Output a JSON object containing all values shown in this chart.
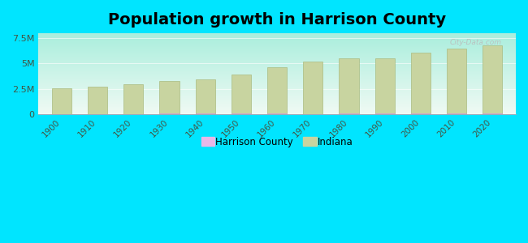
{
  "title": "Population growth in Harrison County",
  "years": [
    1900,
    1910,
    1920,
    1930,
    1940,
    1950,
    1960,
    1970,
    1980,
    1990,
    2000,
    2010,
    2020
  ],
  "indiana_population": [
    2516462,
    2700876,
    2930390,
    3238503,
    3427796,
    3934224,
    4662498,
    5193669,
    5490224,
    5544159,
    6080485,
    6483802,
    6785528
  ],
  "harrison_population": [
    17659,
    19848,
    21480,
    24892,
    25626,
    27276,
    27006,
    20423,
    27276,
    29890,
    34325,
    39364,
    40515
  ],
  "bar_color_indiana": "#c8d4a0",
  "bar_color_harrison": "#e8b8e8",
  "bar_edge_color": "#aabb80",
  "background_color_outer": "#00e5ff",
  "background_color_plot_top": "#f0faf4",
  "background_color_plot_bottom": "#aaeedd",
  "ylim": [
    0,
    8000000
  ],
  "yticks": [
    0,
    2500000,
    5000000,
    7500000
  ],
  "ytick_labels": [
    "0",
    "2.5M",
    "5M",
    "7.5M"
  ],
  "legend_harrison": "Harrison County",
  "legend_indiana": "Indiana",
  "watermark": "City-Data.com",
  "title_fontsize": 14,
  "bar_width": 0.55
}
